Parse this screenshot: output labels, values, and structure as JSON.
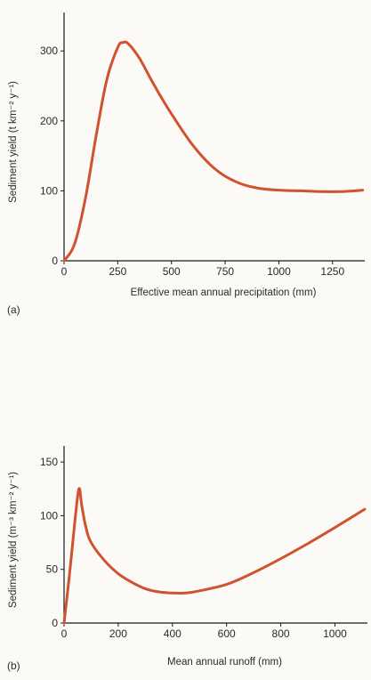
{
  "chart_data": [
    {
      "type": "line",
      "panel_label": "(a)",
      "title": "",
      "xlabel": "Effective mean annual precipitation (mm)",
      "ylabel": "Sediment yield (t km⁻² y⁻¹)",
      "xlim": [
        0,
        1400
      ],
      "ylim": [
        0,
        355
      ],
      "x_ticks": [
        0,
        250,
        500,
        750,
        1000,
        1250
      ],
      "y_ticks": [
        0,
        100,
        200,
        300
      ],
      "grid": false,
      "legend": "none",
      "line_color": "#d0522e",
      "series": [
        {
          "x": [
            0,
            50,
            100,
            150,
            200,
            250,
            275,
            300,
            350,
            400,
            450,
            500,
            600,
            700,
            800,
            900,
            1000,
            1100,
            1200,
            1300,
            1390
          ],
          "y": [
            0,
            25,
            90,
            180,
            260,
            305,
            312,
            310,
            290,
            262,
            235,
            210,
            165,
            132,
            113,
            104,
            101,
            100,
            99,
            99,
            101
          ]
        }
      ]
    },
    {
      "type": "line",
      "panel_label": "(b)",
      "title": "",
      "xlabel": "Mean annual runoff (mm)",
      "ylabel": "Sediment yield (m⁻³ km⁻² y⁻¹)",
      "xlim": [
        0,
        1120
      ],
      "ylim": [
        0,
        165
      ],
      "x_ticks": [
        0,
        200,
        400,
        600,
        800,
        1000
      ],
      "y_ticks": [
        0,
        50,
        100,
        150
      ],
      "grid": false,
      "legend": "none",
      "line_color": "#d0522e",
      "series": [
        {
          "x": [
            0,
            20,
            40,
            55,
            65,
            80,
            100,
            150,
            200,
            250,
            300,
            350,
            400,
            450,
            500,
            600,
            700,
            800,
            900,
            1000,
            1110
          ],
          "y": [
            0,
            45,
            95,
            125,
            110,
            90,
            75,
            58,
            46,
            38,
            32,
            29,
            28,
            28,
            30,
            36,
            47,
            60,
            74,
            89,
            106
          ]
        }
      ]
    }
  ]
}
